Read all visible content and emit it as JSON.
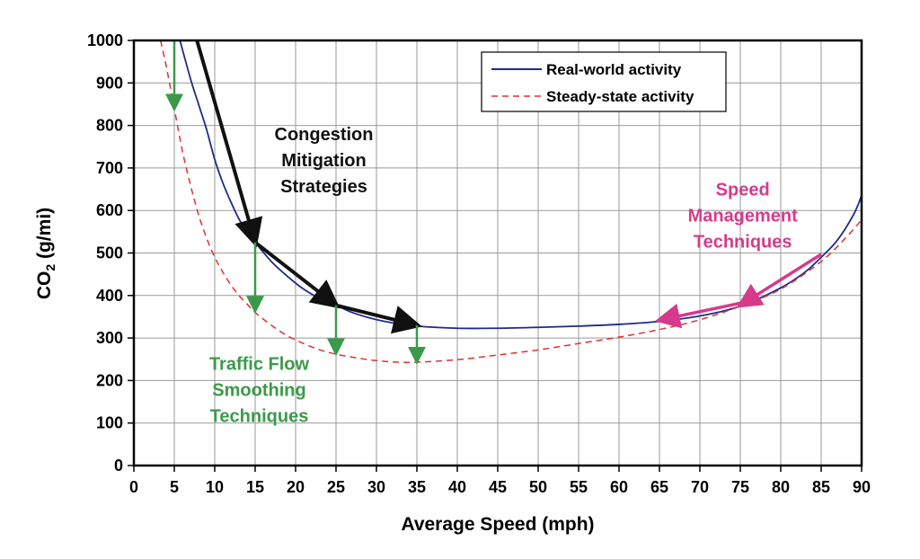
{
  "chart_data": {
    "type": "line",
    "xlabel": "Average Speed (mph)",
    "ylabel_main": "CO",
    "ylabel_sub": "2",
    "ylabel_unit": " (g/mi)",
    "xlim": [
      0,
      90
    ],
    "ylim": [
      0,
      1000
    ],
    "xticks": [
      0,
      5,
      10,
      15,
      20,
      25,
      30,
      35,
      40,
      45,
      50,
      55,
      60,
      65,
      70,
      75,
      80,
      85,
      90
    ],
    "yticks": [
      0,
      100,
      200,
      300,
      400,
      500,
      600,
      700,
      800,
      900,
      1000
    ],
    "grid": true,
    "legend_position": "top-right",
    "series": [
      {
        "name": "Real-world activity",
        "style": "solid",
        "color": "#1f2a8a",
        "points": [
          [
            5.7,
            1000
          ],
          [
            7,
            910
          ],
          [
            8,
            850
          ],
          [
            9,
            790
          ],
          [
            10,
            720
          ],
          [
            11,
            665
          ],
          [
            12,
            620
          ],
          [
            13,
            580
          ],
          [
            14,
            550
          ],
          [
            15,
            525
          ],
          [
            17,
            480
          ],
          [
            19,
            445
          ],
          [
            21,
            415
          ],
          [
            23,
            393
          ],
          [
            25,
            377
          ],
          [
            27,
            360
          ],
          [
            29,
            348
          ],
          [
            31,
            339
          ],
          [
            33,
            333
          ],
          [
            35,
            328
          ],
          [
            40,
            323
          ],
          [
            45,
            323
          ],
          [
            50,
            325
          ],
          [
            55,
            328
          ],
          [
            60,
            332
          ],
          [
            65,
            339
          ],
          [
            70,
            352
          ],
          [
            75,
            375
          ],
          [
            80,
            418
          ],
          [
            83,
            455
          ],
          [
            85,
            490
          ],
          [
            87,
            530
          ],
          [
            89,
            590
          ],
          [
            90,
            635
          ]
        ]
      },
      {
        "name": "Steady-state activity",
        "style": "dashed",
        "color": "#e03030",
        "points": [
          [
            3.3,
            1000
          ],
          [
            4,
            940
          ],
          [
            5,
            840
          ],
          [
            6,
            740
          ],
          [
            7,
            660
          ],
          [
            8,
            590
          ],
          [
            9,
            535
          ],
          [
            10,
            490
          ],
          [
            11,
            455
          ],
          [
            12,
            425
          ],
          [
            13,
            400
          ],
          [
            14,
            380
          ],
          [
            15,
            360
          ],
          [
            17,
            330
          ],
          [
            19,
            305
          ],
          [
            21,
            287
          ],
          [
            23,
            272
          ],
          [
            25,
            262
          ],
          [
            27,
            255
          ],
          [
            29,
            249
          ],
          [
            31,
            245
          ],
          [
            33,
            243
          ],
          [
            35,
            243
          ],
          [
            40,
            249
          ],
          [
            45,
            260
          ],
          [
            50,
            272
          ],
          [
            55,
            287
          ],
          [
            60,
            302
          ],
          [
            65,
            320
          ],
          [
            70,
            343
          ],
          [
            75,
            375
          ],
          [
            80,
            415
          ],
          [
            85,
            480
          ],
          [
            88,
            535
          ],
          [
            90,
            578
          ]
        ]
      }
    ],
    "arrows": [
      {
        "group": "congestion",
        "color": "#111111",
        "from": [
          7.8,
          1000
        ],
        "to": [
          15,
          525
        ]
      },
      {
        "group": "congestion",
        "color": "#111111",
        "from": [
          15,
          525
        ],
        "to": [
          25,
          377
        ]
      },
      {
        "group": "congestion",
        "color": "#111111",
        "from": [
          25,
          377
        ],
        "to": [
          35,
          330
        ]
      },
      {
        "group": "traffic",
        "color": "#3a9a4a",
        "from": [
          5,
          1000
        ],
        "to": [
          5,
          840
        ]
      },
      {
        "group": "traffic",
        "color": "#3a9a4a",
        "from": [
          15,
          525
        ],
        "to": [
          15,
          365
        ]
      },
      {
        "group": "traffic",
        "color": "#3a9a4a",
        "from": [
          25,
          377
        ],
        "to": [
          25,
          265
        ]
      },
      {
        "group": "traffic",
        "color": "#3a9a4a",
        "from": [
          35,
          330
        ],
        "to": [
          35,
          245
        ]
      },
      {
        "group": "speed",
        "color": "#d63a8a",
        "from": [
          85,
          497
        ],
        "to": [
          75,
          377
        ]
      },
      {
        "group": "speed",
        "color": "#d63a8a",
        "from": [
          75,
          382
        ],
        "to": [
          65,
          342
        ]
      }
    ],
    "annotations": [
      {
        "id": "congestion",
        "lines": [
          "Congestion",
          "Mitigation",
          "Strategies"
        ],
        "color": "#111111",
        "x": 23.5,
        "y": 765
      },
      {
        "id": "traffic",
        "lines": [
          "Traffic Flow",
          "Smoothing",
          "Techniques"
        ],
        "color": "#3a9a4a",
        "x": 15.5,
        "y": 225
      },
      {
        "id": "speed",
        "lines": [
          "Speed",
          "Management",
          "Techniques"
        ],
        "color": "#d63a8a",
        "x": 75.3,
        "y": 635
      }
    ]
  }
}
